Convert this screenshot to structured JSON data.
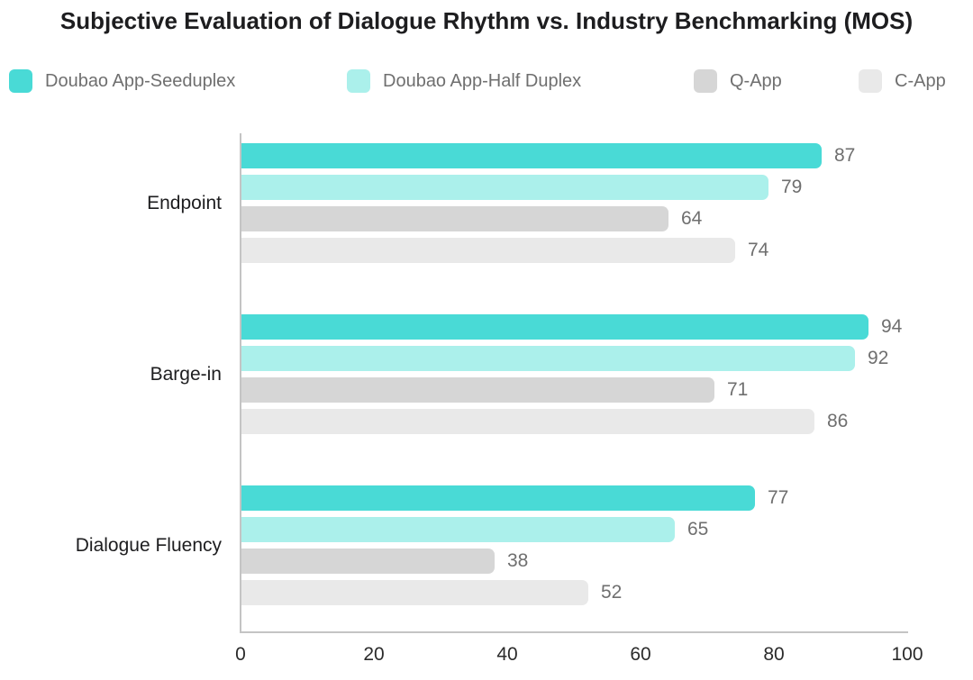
{
  "title": "Subjective Evaluation of Dialogue Rhythm vs. Industry Benchmarking (MOS)",
  "legend": {
    "items": [
      {
        "label": "Doubao App-Seeduplex",
        "color": "#49dad6"
      },
      {
        "label": "Doubao App-Half Duplex",
        "color": "#abf0eb"
      },
      {
        "label": "Q-App",
        "color": "#d6d6d6"
      },
      {
        "label": "C-App",
        "color": "#e9e9e9"
      }
    ]
  },
  "chart_data": {
    "type": "bar",
    "orientation": "horizontal",
    "title": "Subjective Evaluation of Dialogue Rhythm vs. Industry Benchmarking (MOS)",
    "categories": [
      "Endpoint",
      "Barge-in",
      "Dialogue Fluency"
    ],
    "series": [
      {
        "name": "Doubao App-Seeduplex",
        "color": "#49dad6",
        "values": [
          87,
          94,
          77
        ]
      },
      {
        "name": "Doubao App-Half Duplex",
        "color": "#abf0eb",
        "values": [
          79,
          92,
          65
        ]
      },
      {
        "name": "Q-App",
        "color": "#d6d6d6",
        "values": [
          64,
          71,
          38
        ]
      },
      {
        "name": "C-App",
        "color": "#e9e9e9",
        "values": [
          74,
          86,
          52
        ]
      }
    ],
    "xlabel": "",
    "ylabel": "",
    "xlim": [
      0,
      100
    ],
    "x_ticks": [
      0,
      20,
      40,
      60,
      80,
      100
    ],
    "data_labels": true,
    "grid": false,
    "legend_position": "top"
  },
  "styles": {
    "title_color": "#1d1d1f",
    "legend_label_color": "#6f6f6f",
    "category_label_color": "#1d1d1f",
    "value_label_color": "#6f6f6f",
    "tick_label_color": "#2b2b2b",
    "axis_color": "#c4c4c4",
    "background": "#ffffff"
  }
}
